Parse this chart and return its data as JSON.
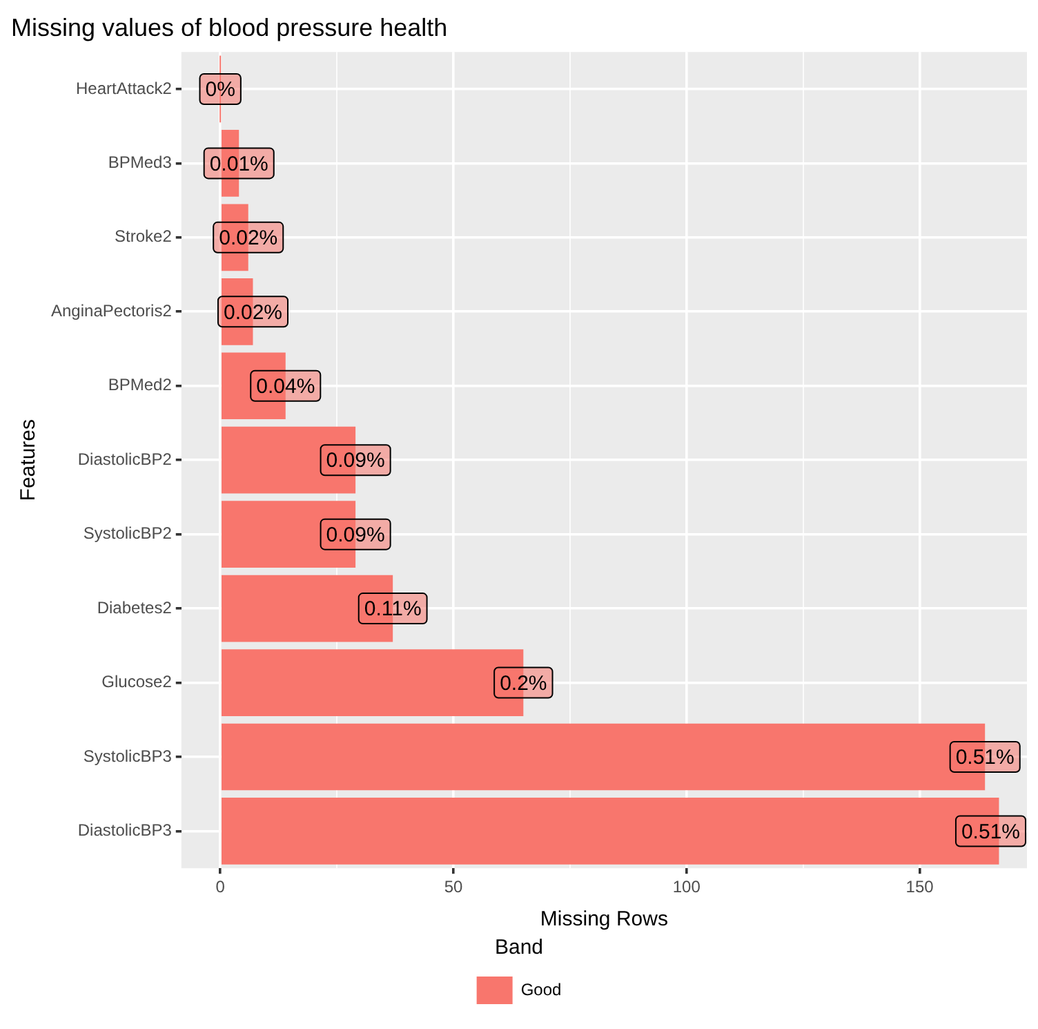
{
  "chart_data": {
    "type": "bar",
    "orientation": "horizontal",
    "title": "Missing values of blood pressure health",
    "xlabel": "Missing Rows",
    "ylabel": "Features",
    "legend_title": "Band",
    "legend": "bottom",
    "grid": true,
    "categories": [
      "HeartAttack2",
      "BPMed3",
      "Stroke2",
      "AnginaPectoris2",
      "BPMed2",
      "DiastolicBP2",
      "SystolicBP2",
      "Diabetes2",
      "Glucose2",
      "SystolicBP3",
      "DiastolicBP3"
    ],
    "series": [
      {
        "name": "Good",
        "color": "#f8766d",
        "values": [
          0,
          4,
          6,
          7,
          14,
          29,
          29,
          37,
          65,
          164,
          167
        ]
      }
    ],
    "annotations": [
      {
        "text": "0%",
        "x": 0,
        "y": "HeartAttack2"
      },
      {
        "text": "0.01%",
        "x": 4,
        "y": "BPMed3"
      },
      {
        "text": "0.02%",
        "x": 6,
        "y": "Stroke2"
      },
      {
        "text": "0.02%",
        "x": 7,
        "y": "AnginaPectoris2"
      },
      {
        "text": "0.04%",
        "x": 14,
        "y": "BPMed2"
      },
      {
        "text": "0.09%",
        "x": 29,
        "y": "DiastolicBP2"
      },
      {
        "text": "0.09%",
        "x": 29,
        "y": "SystolicBP2"
      },
      {
        "text": "0.11%",
        "x": 37,
        "y": "Diabetes2"
      },
      {
        "text": "0.2%",
        "x": 65,
        "y": "Glucose2"
      },
      {
        "text": "0.51%",
        "x": 164,
        "y": "SystolicBP3"
      },
      {
        "text": "0.51%",
        "x": 167,
        "y": "DiastolicBP3"
      }
    ],
    "xlim": [
      -8.35,
      173
    ],
    "xticks": [
      0,
      {
        "value": 25,
        "label": null
      },
      50,
      {
        "value": 75,
        "label": null
      },
      100,
      {
        "value": 125,
        "label": null
      },
      150
    ]
  }
}
